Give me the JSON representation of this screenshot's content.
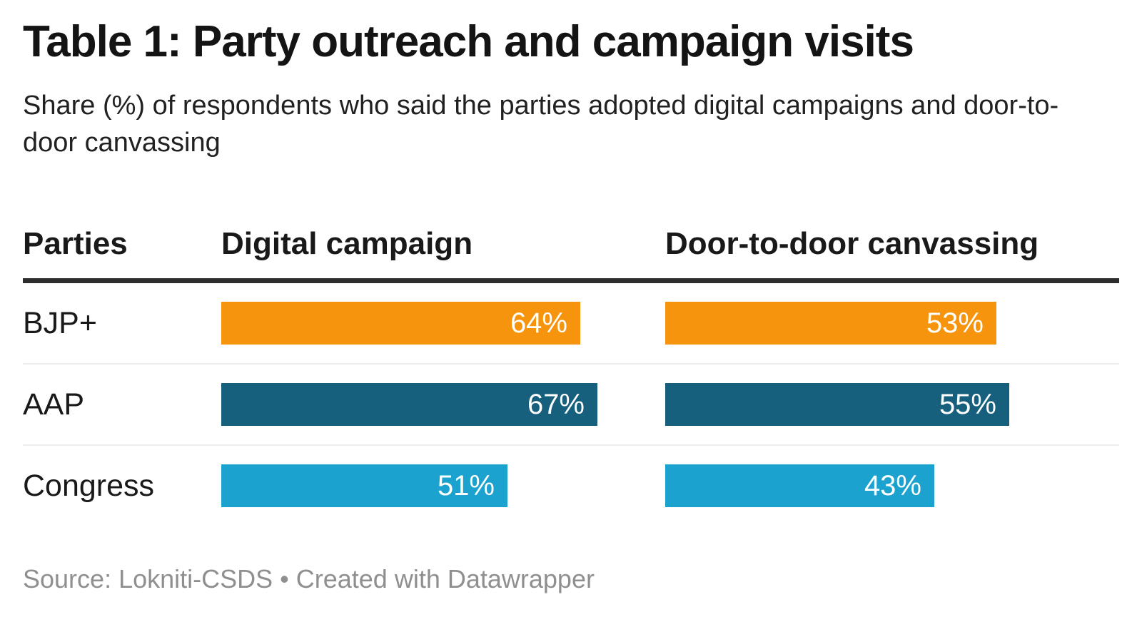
{
  "chart_data": {
    "type": "bar",
    "title": "Table 1: Party outreach and campaign visits",
    "subtitle": "Share (%) of respondents who said the parties adopted digital campaigns and door-to-door canvassing",
    "columns": [
      "Parties",
      "Digital campaign",
      "Door-to-door canvassing"
    ],
    "categories": [
      "BJP+",
      "AAP",
      "Congress"
    ],
    "series": [
      {
        "name": "Digital campaign",
        "values": [
          64,
          67,
          51
        ]
      },
      {
        "name": "Door-to-door canvassing",
        "values": [
          53,
          55,
          43
        ]
      }
    ],
    "value_suffix": "%",
    "row_colors": [
      "#f7940d",
      "#17607d",
      "#1ca2cf"
    ],
    "colors": {
      "bjp_orange": "#f7940d",
      "aap_dark_teal": "#17607d",
      "congress_light_blue": "#1ca2cf",
      "header_rule": "#2e2e2e",
      "row_separator": "#ececec",
      "value_text": "#ffffff",
      "source_text": "#8f8f8f"
    },
    "source_line": "Source: Lokniti-CSDS • Created with Datawrapper",
    "layout_hints": {
      "bars_scaled_to_column_max": true,
      "value_labels": "inside-right",
      "grid": "off",
      "legend": "none"
    }
  }
}
